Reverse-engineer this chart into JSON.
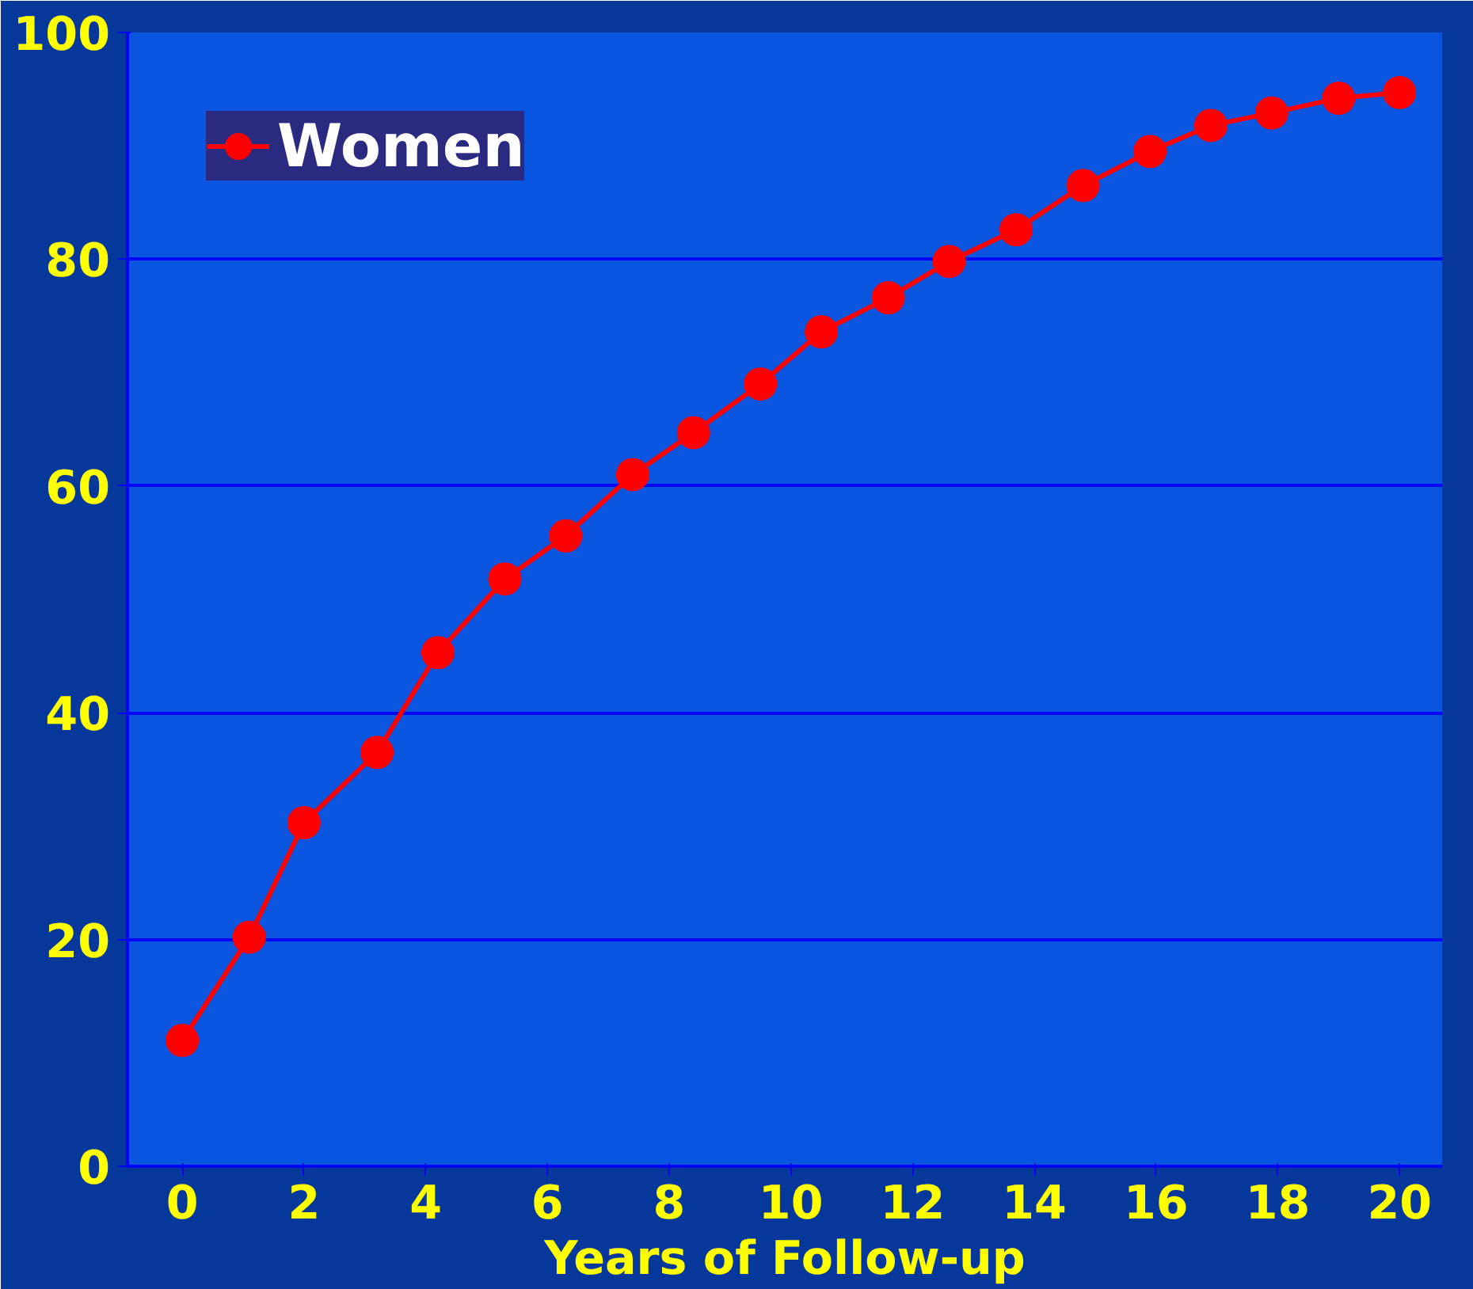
{
  "chart_data": {
    "type": "line",
    "xlabel": "Years of Follow-up",
    "xlim": [
      -0.9,
      20.7
    ],
    "xticks": [
      0,
      2,
      4,
      6,
      8,
      10,
      12,
      14,
      16,
      18,
      20
    ],
    "ylim": [
      0,
      100
    ],
    "yticks": [
      0,
      20,
      40,
      60,
      80,
      100
    ],
    "grid": "y",
    "legend": "top left",
    "marker": "circle",
    "line_style": "solid",
    "series": [
      {
        "name": "Women",
        "color": "#ff0000",
        "x": [
          0,
          1.1,
          2.0,
          3.2,
          4.2,
          5.3,
          6.3,
          7.4,
          8.4,
          9.5,
          10.5,
          11.6,
          12.6,
          13.7,
          14.8,
          15.9,
          16.9,
          17.9,
          19.0,
          20.0
        ],
        "values": [
          11.1,
          20.2,
          30.3,
          36.5,
          45.3,
          51.8,
          55.6,
          61.0,
          64.7,
          69.0,
          73.6,
          76.6,
          79.8,
          82.6,
          86.5,
          89.5,
          91.8,
          92.9,
          94.2,
          94.7
        ]
      }
    ]
  }
}
